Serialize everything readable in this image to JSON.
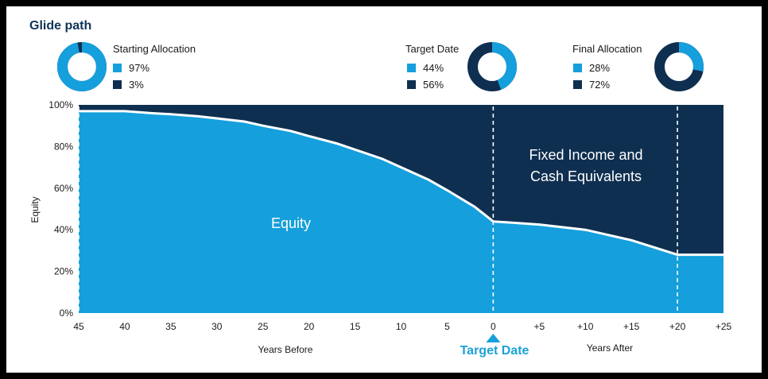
{
  "colors": {
    "equity": "#159fdc",
    "fixed": "#0f2f50",
    "white": "#ffffff",
    "text": "#1a1a1a",
    "title": "#0f3458"
  },
  "title": "Glide path",
  "allocations": [
    {
      "label": "Starting Allocation",
      "equity_pct": 97,
      "fixed_pct": 3,
      "equity_text": "97%",
      "fixed_text": "3%"
    },
    {
      "label": "Target Date",
      "equity_pct": 44,
      "fixed_pct": 56,
      "equity_text": "44%",
      "fixed_text": "56%"
    },
    {
      "label": "Final Allocation",
      "equity_pct": 28,
      "fixed_pct": 72,
      "equity_text": "28%",
      "fixed_text": "72%"
    }
  ],
  "chart_data": {
    "type": "area",
    "title": "Glide path",
    "ylabel": "Equity",
    "y_ticks": [
      "100%",
      "80%",
      "60%",
      "40%",
      "20%",
      "0%"
    ],
    "ylim": [
      0,
      100
    ],
    "x_ticks": [
      "45",
      "40",
      "35",
      "30",
      "25",
      "20",
      "15",
      "10",
      "5",
      "0",
      "+5",
      "+10",
      "+15",
      "+20",
      "+25"
    ],
    "x_values": [
      -45,
      -40,
      -35,
      -30,
      -25,
      -20,
      -15,
      -10,
      -5,
      0,
      5,
      10,
      15,
      20,
      25
    ],
    "xlim": [
      -45,
      25
    ],
    "xlabel_before": "Years Before",
    "xlabel_after": "Years After",
    "target_label": "Target Date",
    "series": [
      {
        "name": "Equity",
        "x": [
          -45,
          -40,
          -37,
          -35,
          -32,
          -30,
          -27,
          -25,
          -22,
          -20,
          -17,
          -15,
          -12,
          -10,
          -7,
          -5,
          -2,
          0,
          5,
          10,
          15,
          20,
          25
        ],
        "values": [
          97,
          97,
          96,
          95.5,
          94.5,
          93.5,
          92,
          90,
          87.5,
          85,
          81.5,
          78.5,
          74,
          70,
          64,
          59,
          51,
          44,
          42.5,
          40,
          35,
          28,
          28
        ]
      },
      {
        "name": "Fixed Income and Cash Equivalents"
      }
    ],
    "region_labels": {
      "equity": "Equity",
      "fixed_line1": "Fixed Income and",
      "fixed_line2": "Cash Equivalents"
    },
    "markers_at": [
      -45,
      0,
      20
    ],
    "grid": false
  }
}
